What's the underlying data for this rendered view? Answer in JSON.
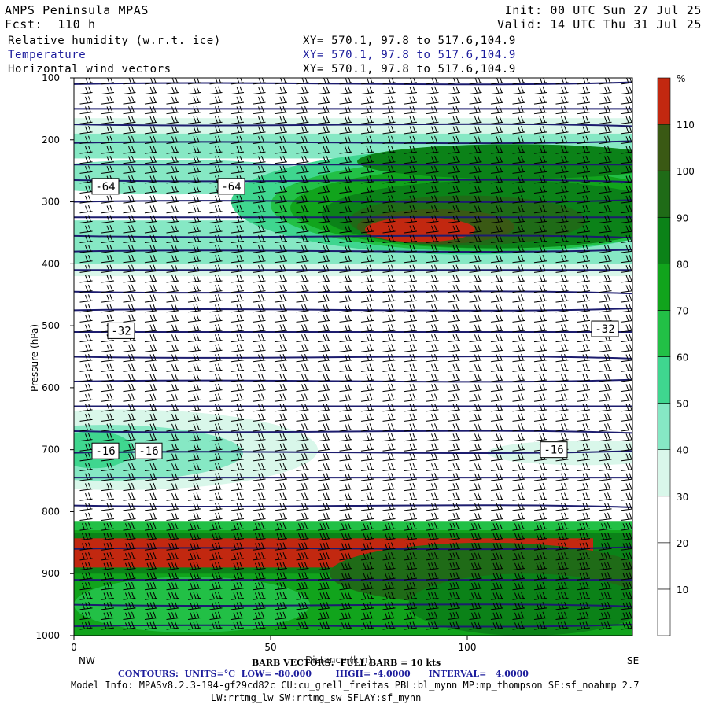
{
  "header": {
    "title": "AMPS Peninsula MPAS",
    "fcst": "Fcst:  110 h",
    "init": "Init: 00 UTC Sun 27 Jul 25",
    "valid": "Valid: 14 UTC Thu 31 Jul 25",
    "fields": [
      {
        "label": "Relative humidity (w.r.t. ice)",
        "xy": "XY= 570.1, 97.8 to 517.6,104.9",
        "color": "#000000"
      },
      {
        "label": "Temperature",
        "xy": "XY= 570.1, 97.8 to 517.6,104.9",
        "color": "#1c1c9c"
      },
      {
        "label": "Horizontal wind vectors",
        "xy": "XY= 570.1, 97.8 to 517.6,104.9",
        "color": "#000000"
      }
    ]
  },
  "footer": {
    "nw": "NW",
    "se": "SE",
    "barb": "BARB VECTORS:  FULL BARB = 10 kts",
    "xlabel": "Distance (km)",
    "contours": "CONTOURS:  UNITS=°C  LOW= -80.000        HIGH= -4.0000      INTERVAL=   4.0000",
    "model1": "Model Info: MPASv8.2.3-194-gf29cd82c CU:cu_grell_freitas PBL:bl_mynn MP:mp_thompson SF:sf_noahmp 2.7",
    "model2": "LW:rrtmg_lw SW:rrtmg_sw SFLAY:sf_mynn"
  },
  "chart_data": {
    "type": "heatmap",
    "ylabel": "Pressure (hPa)",
    "xlabel": "Distance (km)",
    "xlim": [
      0,
      142
    ],
    "ylim": [
      1000,
      100
    ],
    "x_ticks": [
      0,
      50,
      100
    ],
    "y_ticks": [
      100,
      200,
      300,
      400,
      500,
      600,
      700,
      800,
      900,
      1000
    ],
    "colorbar": {
      "unit": "%",
      "levels": [
        10,
        20,
        30,
        40,
        50,
        60,
        70,
        80,
        90,
        100,
        110
      ],
      "colors": [
        "#ffffff",
        "#ffffff",
        "#ffffff",
        "#d9f7ea",
        "#86e8c4",
        "#3fd68f",
        "#22c046",
        "#11a41c",
        "#0b8218",
        "#1f6b17",
        "#3a5914",
        "#c22810"
      ]
    },
    "rh_regions": [
      {
        "level": 40,
        "x": [
          0,
          142
        ],
        "p": [
          175,
          420
        ],
        "note": "upper moist layer"
      },
      {
        "level": 110,
        "x": [
          78,
          102
        ],
        "p": [
          320,
          370
        ],
        "note": "ice supersaturation core"
      },
      {
        "level": 40,
        "x": [
          0,
          45
        ],
        "p": [
          640,
          760
        ],
        "note": "mid-level moist patch"
      },
      {
        "level": 110,
        "x": [
          0,
          135
        ],
        "p": [
          835,
          895
        ],
        "note": "boundary layer supersaturation"
      }
    ],
    "temperature_contours": {
      "units": "°C",
      "low": -80,
      "high": -4,
      "interval": 4,
      "labels": [
        {
          "value": -64,
          "x": 8,
          "p": 275
        },
        {
          "value": -64,
          "x": 40,
          "p": 275
        },
        {
          "value": -32,
          "x": 12,
          "p": 508
        },
        {
          "value": -32,
          "x": 135,
          "p": 505
        },
        {
          "value": -16,
          "x": 8,
          "p": 702
        },
        {
          "value": -16,
          "x": 19,
          "p": 702
        },
        {
          "value": -16,
          "x": 122,
          "p": 700
        }
      ]
    },
    "wind_barbs": {
      "full_barb_kts": 10
    }
  }
}
